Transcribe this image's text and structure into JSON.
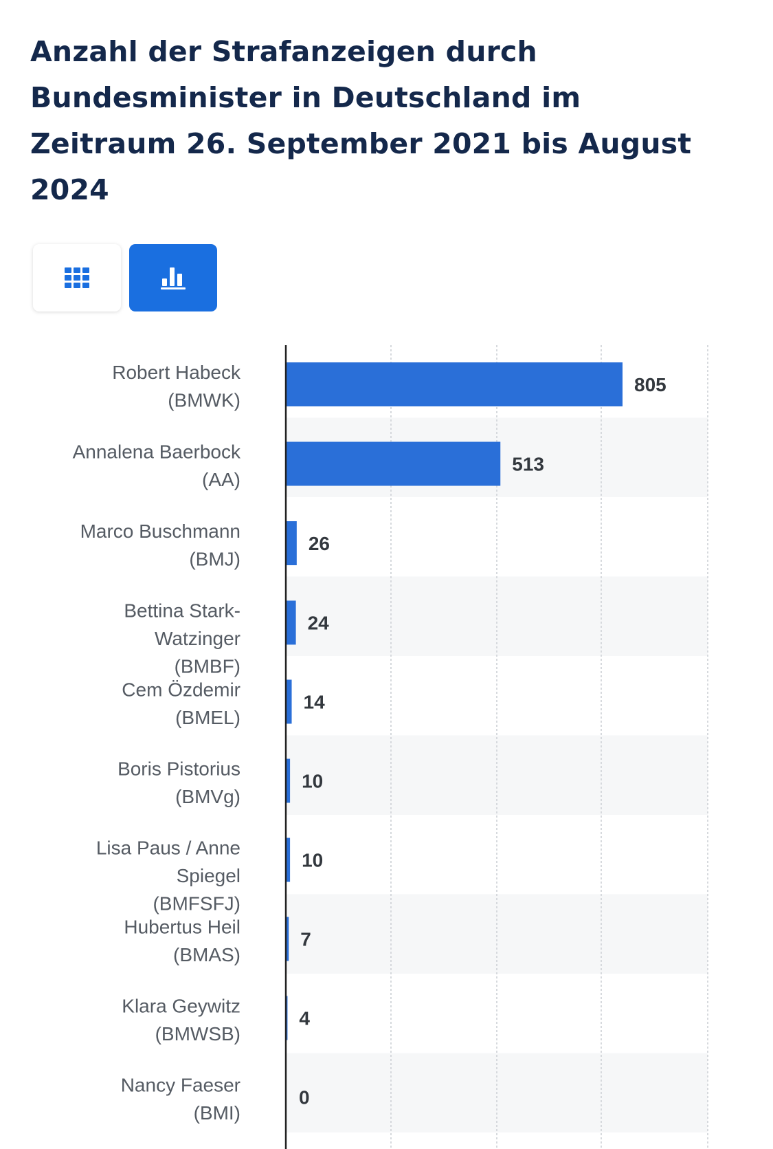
{
  "header": {
    "title": "Anzahl der Strafanzeigen durch Bundesminister in Deutschland im Zeitraum 26. September 2021 bis August 2024"
  },
  "view_toggle": {
    "table_icon": "grid-icon",
    "chart_icon": "bar-chart-icon",
    "active": "chart",
    "active_color": "#1a6fe0",
    "icon_color_active": "#ffffff",
    "icon_color_inactive": "#1a6fe0"
  },
  "chart_data": {
    "type": "bar",
    "orientation": "horizontal",
    "categories": [
      [
        "Robert Habeck",
        "(BMWK)"
      ],
      [
        "Annalena Baerbock",
        "(AA)"
      ],
      [
        "Marco Buschmann",
        "(BMJ)"
      ],
      [
        "Bettina Stark-",
        "Watzinger",
        "(BMBF)"
      ],
      [
        "Cem Özdemir",
        "(BMEL)"
      ],
      [
        "Boris Pistorius",
        "(BMVg)"
      ],
      [
        "Lisa Paus / Anne",
        "Spiegel",
        "(BMFSFJ)"
      ],
      [
        "Hubertus Heil",
        "(BMAS)"
      ],
      [
        "Klara Geywitz",
        "(BMWSB)"
      ],
      [
        "Nancy Faeser",
        "(BMI)"
      ]
    ],
    "values": [
      805,
      513,
      26,
      24,
      14,
      10,
      10,
      7,
      4,
      0
    ],
    "xlim": [
      0,
      1000
    ],
    "grid": true,
    "bar_color": "#2a6fd8",
    "data_labels": true
  }
}
